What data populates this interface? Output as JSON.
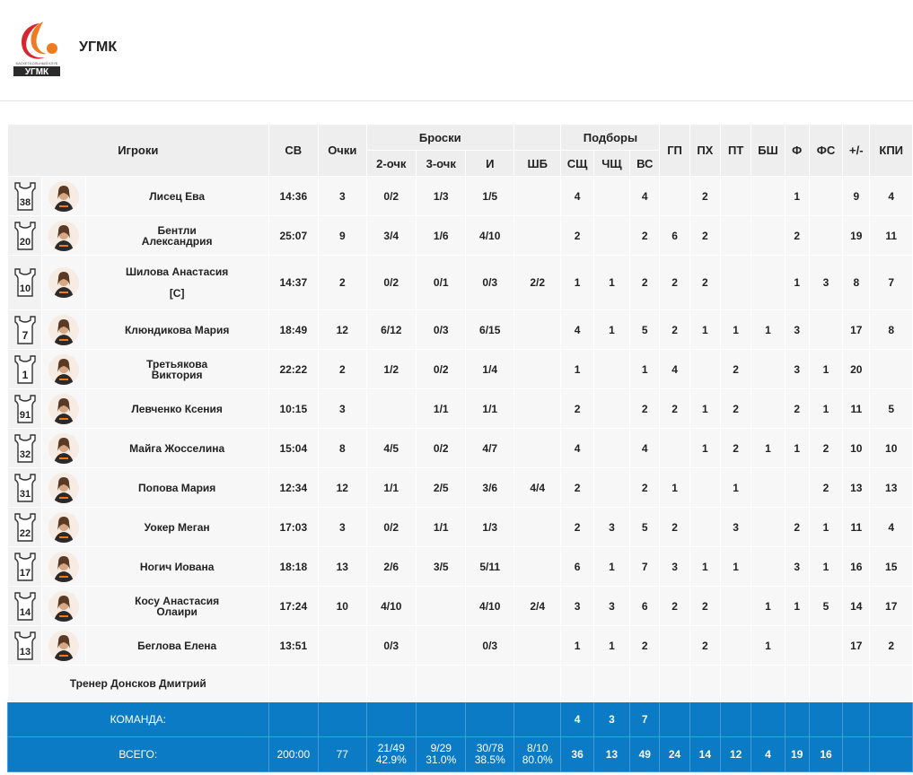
{
  "team": {
    "name": "УГМК",
    "logo_text": "УГМК",
    "logo_subtext": "БАСКЕТБОЛЬНЫЙ КЛУБ"
  },
  "headers": {
    "players": "Игроки",
    "time": "СВ",
    "points": "Очки",
    "shots": "Броски",
    "two": "2-очк",
    "three": "3-очк",
    "total_fg": "И",
    "ft": "ШБ",
    "rebounds": "Подборы",
    "def": "СЩ",
    "off": "ЧЩ",
    "all": "ВС",
    "ast": "ГП",
    "stl": "ПХ",
    "to": "ПТ",
    "blk": "БШ",
    "pf": "Ф",
    "fd": "ФС",
    "pm": "+/-",
    "eff": "КПИ"
  },
  "players": [
    {
      "num": "38",
      "name": "Лисец Ева",
      "min": "14:36",
      "pts": "3",
      "two": "0/2",
      "three": "1/3",
      "fg": "1/5",
      "ft": "",
      "def": "4",
      "off": "",
      "reb": "4",
      "ast": "",
      "stl": "2",
      "to": "",
      "blk": "",
      "pf": "1",
      "fd": "",
      "pm": "9",
      "eff": "4"
    },
    {
      "num": "20",
      "name": "Бентли Александрия",
      "min": "25:07",
      "pts": "9",
      "two": "3/4",
      "three": "1/6",
      "fg": "4/10",
      "ft": "",
      "def": "2",
      "off": "",
      "reb": "2",
      "ast": "6",
      "stl": "2",
      "to": "",
      "blk": "",
      "pf": "2",
      "fd": "",
      "pm": "19",
      "eff": "11"
    },
    {
      "num": "10",
      "name": "Шилова Анастасия",
      "captain": "[C]",
      "min": "14:37",
      "pts": "2",
      "two": "0/2",
      "three": "0/1",
      "fg": "0/3",
      "ft": "2/2",
      "def": "1",
      "off": "1",
      "reb": "2",
      "ast": "2",
      "stl": "2",
      "to": "",
      "blk": "",
      "pf": "1",
      "fd": "3",
      "pm": "8",
      "eff": "7"
    },
    {
      "num": "7",
      "name": "Клюндикова Мария",
      "min": "18:49",
      "pts": "12",
      "two": "6/12",
      "three": "0/3",
      "fg": "6/15",
      "ft": "",
      "def": "4",
      "off": "1",
      "reb": "5",
      "ast": "2",
      "stl": "1",
      "to": "1",
      "blk": "1",
      "pf": "3",
      "fd": "",
      "pm": "17",
      "eff": "8"
    },
    {
      "num": "1",
      "name": "Третьякова Виктория",
      "min": "22:22",
      "pts": "2",
      "two": "1/2",
      "three": "0/2",
      "fg": "1/4",
      "ft": "",
      "def": "1",
      "off": "",
      "reb": "1",
      "ast": "4",
      "stl": "",
      "to": "2",
      "blk": "",
      "pf": "3",
      "fd": "1",
      "pm": "20",
      "eff": ""
    },
    {
      "num": "91",
      "name": "Левченко Ксения",
      "min": "10:15",
      "pts": "3",
      "two": "",
      "three": "1/1",
      "fg": "1/1",
      "ft": "",
      "def": "2",
      "off": "",
      "reb": "2",
      "ast": "2",
      "stl": "1",
      "to": "2",
      "blk": "",
      "pf": "2",
      "fd": "1",
      "pm": "11",
      "eff": "5"
    },
    {
      "num": "32",
      "name": "Майга Жосселина",
      "min": "15:04",
      "pts": "8",
      "two": "4/5",
      "three": "0/2",
      "fg": "4/7",
      "ft": "",
      "def": "4",
      "off": "",
      "reb": "4",
      "ast": "",
      "stl": "1",
      "to": "2",
      "blk": "1",
      "pf": "1",
      "fd": "2",
      "pm": "10",
      "eff": "10"
    },
    {
      "num": "31",
      "name": "Попова Мария",
      "min": "12:34",
      "pts": "12",
      "two": "1/1",
      "three": "2/5",
      "fg": "3/6",
      "ft": "4/4",
      "def": "2",
      "off": "",
      "reb": "2",
      "ast": "1",
      "stl": "",
      "to": "1",
      "blk": "",
      "pf": "",
      "fd": "2",
      "pm": "13",
      "eff": "13"
    },
    {
      "num": "22",
      "name": "Уокер Меган",
      "min": "17:03",
      "pts": "3",
      "two": "0/2",
      "three": "1/1",
      "fg": "1/3",
      "ft": "",
      "def": "2",
      "off": "3",
      "reb": "5",
      "ast": "2",
      "stl": "",
      "to": "3",
      "blk": "",
      "pf": "2",
      "fd": "1",
      "pm": "11",
      "eff": "4"
    },
    {
      "num": "17",
      "name": "Ногич Иована",
      "min": "18:18",
      "pts": "13",
      "two": "2/6",
      "three": "3/5",
      "fg": "5/11",
      "ft": "",
      "def": "6",
      "off": "1",
      "reb": "7",
      "ast": "3",
      "stl": "1",
      "to": "1",
      "blk": "",
      "pf": "3",
      "fd": "1",
      "pm": "16",
      "eff": "15"
    },
    {
      "num": "14",
      "name": "Косу Анастасия Олаири",
      "min": "17:24",
      "pts": "10",
      "two": "4/10",
      "three": "",
      "fg": "4/10",
      "ft": "2/4",
      "def": "3",
      "off": "3",
      "reb": "6",
      "ast": "2",
      "stl": "2",
      "to": "",
      "blk": "1",
      "pf": "1",
      "fd": "5",
      "pm": "14",
      "eff": "17"
    },
    {
      "num": "13",
      "name": "Беглова Елена",
      "min": "13:51",
      "pts": "",
      "two": "0/3",
      "three": "",
      "fg": "0/3",
      "ft": "",
      "def": "1",
      "off": "1",
      "reb": "2",
      "ast": "",
      "stl": "2",
      "to": "",
      "blk": "1",
      "pf": "",
      "fd": "",
      "pm": "17",
      "eff": "2"
    }
  ],
  "coach": "Тренер Донсков Дмитрий",
  "team_row": {
    "label": "КОМАНДА:",
    "def": "4",
    "off": "3",
    "reb": "7"
  },
  "total_row": {
    "label": "ВСЕГО:",
    "min": "200:00",
    "pts": "77",
    "two": "21/49",
    "two_pct": "42.9%",
    "three": "9/29",
    "three_pct": "31.0%",
    "fg": "30/78",
    "fg_pct": "38.5%",
    "ft": "8/10",
    "ft_pct": "80.0%",
    "def": "36",
    "off": "13",
    "reb": "49",
    "ast": "24",
    "stl": "14",
    "to": "12",
    "blk": "4",
    "pf": "19",
    "fd": "16",
    "pm": "",
    "eff": ""
  },
  "colors": {
    "accent": "#0a7bc4",
    "logo_orange": "#f07a1e",
    "logo_red": "#d8262e"
  }
}
